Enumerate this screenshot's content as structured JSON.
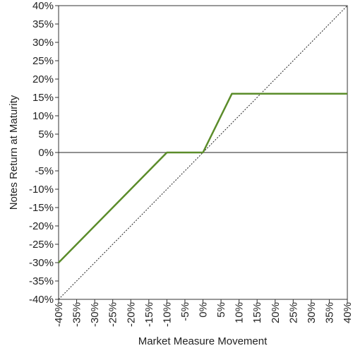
{
  "chart_data": {
    "type": "line",
    "title": "",
    "xlabel": "Market Measure Movement",
    "ylabel": "Notes Return at Maturity",
    "xlim": [
      -40,
      40
    ],
    "ylim": [
      -40,
      40
    ],
    "x_ticks": [
      -40,
      -35,
      -30,
      -25,
      -20,
      -15,
      -10,
      -5,
      0,
      5,
      10,
      15,
      20,
      25,
      30,
      35,
      40
    ],
    "y_ticks": [
      -40,
      -35,
      -30,
      -25,
      -20,
      -15,
      -10,
      -5,
      0,
      5,
      10,
      15,
      20,
      25,
      30,
      35,
      40
    ],
    "tick_format_suffix": "%",
    "grid": false,
    "series": [
      {
        "style": "solid",
        "color": "#5b8c2a",
        "x": [
          -40,
          -10,
          0,
          8,
          40
        ],
        "y": [
          -30,
          0,
          0,
          16,
          16
        ]
      },
      {
        "style": "dotted",
        "color": "#222222",
        "x": [
          -40,
          40
        ],
        "y": [
          -40,
          40
        ]
      }
    ],
    "reference_lines": [
      {
        "axis": "y",
        "value": 0,
        "color": "#222222"
      }
    ]
  }
}
